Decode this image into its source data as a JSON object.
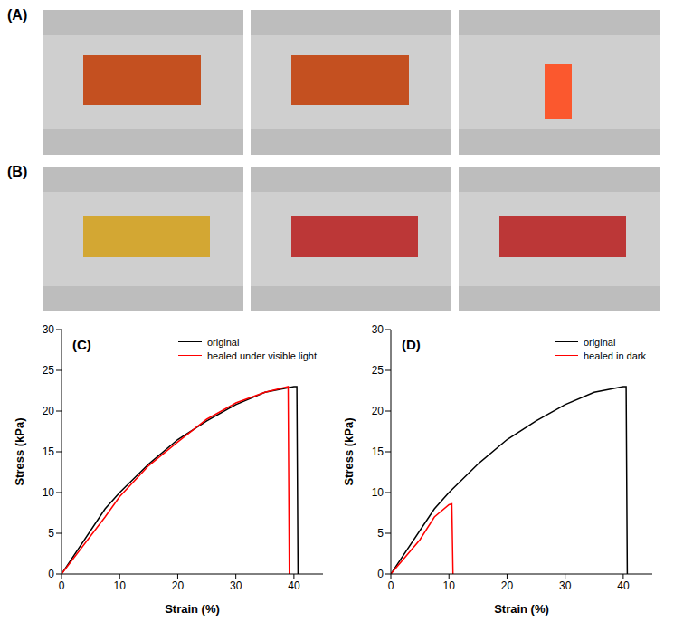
{
  "photo_panels": [
    {
      "label": "(A)"
    },
    {
      "label": "(B)"
    }
  ],
  "chart_data": [
    {
      "type": "line",
      "title": "(C)",
      "x_label": "Strain (%)",
      "y_label": "Stress (kPa)",
      "xlim": [
        0,
        45
      ],
      "xticks": [
        0,
        10,
        20,
        30,
        40
      ],
      "ylim": [
        0,
        30
      ],
      "yticks": [
        0,
        5,
        10,
        15,
        20,
        25,
        30
      ],
      "legend": "upper right",
      "series": [
        {
          "name": "original",
          "color": "#000000",
          "x": [
            0,
            7.5,
            10,
            15,
            20,
            25,
            30,
            35,
            40,
            40.5,
            40.7
          ],
          "values": [
            0,
            8,
            10,
            13.5,
            16.5,
            18.8,
            20.8,
            22.3,
            23,
            23,
            0
          ]
        },
        {
          "name": "healed under visible light",
          "color": "#ff0000",
          "x": [
            0,
            7.5,
            10,
            15,
            20,
            25,
            30,
            35,
            39,
            39.2
          ],
          "values": [
            0,
            7,
            9.5,
            13.3,
            16.2,
            19,
            21,
            22.3,
            23,
            0
          ]
        }
      ]
    },
    {
      "type": "line",
      "title": "(D)",
      "x_label": "Strain (%)",
      "y_label": "Stress (kPa)",
      "xlim": [
        0,
        45
      ],
      "xticks": [
        0,
        10,
        20,
        30,
        40
      ],
      "ylim": [
        0,
        30
      ],
      "yticks": [
        0,
        5,
        10,
        15,
        20,
        25,
        30
      ],
      "legend": "upper right",
      "series": [
        {
          "name": "original",
          "color": "#000000",
          "x": [
            0,
            7.5,
            10,
            15,
            20,
            25,
            30,
            35,
            40,
            40.5,
            40.7
          ],
          "values": [
            0,
            8,
            10,
            13.5,
            16.5,
            18.8,
            20.8,
            22.3,
            23,
            23,
            0
          ]
        },
        {
          "name": "healed in dark",
          "color": "#ff0000",
          "x": [
            0,
            5,
            7.5,
            10,
            10.5,
            10.7
          ],
          "values": [
            0,
            4.2,
            7,
            8.5,
            8.6,
            0
          ]
        }
      ]
    }
  ]
}
